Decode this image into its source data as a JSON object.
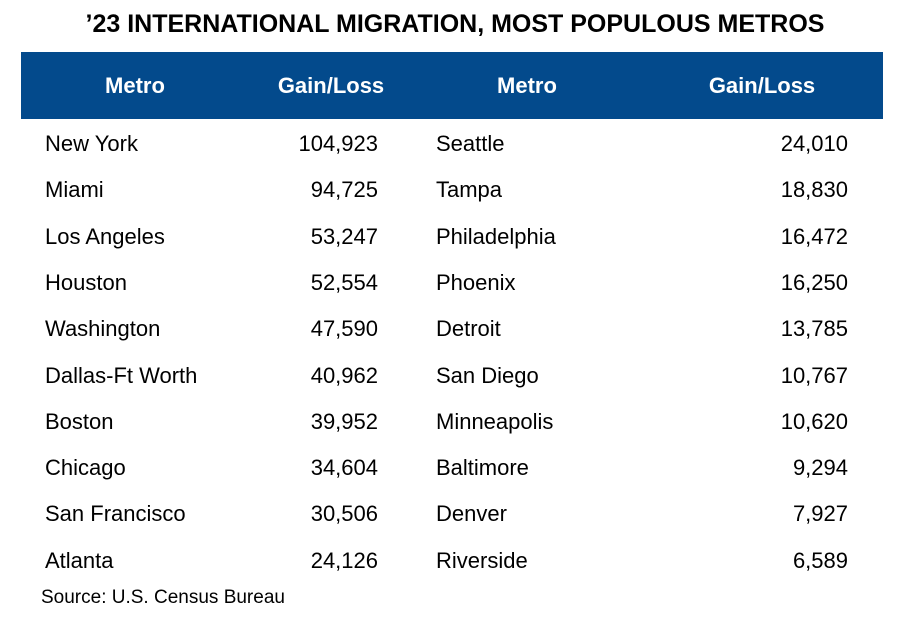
{
  "title": "’23 INTERNATIONAL MIGRATION, MOST POPULOUS METROS",
  "table": {
    "header": [
      "Metro",
      "Gain/Loss",
      "Metro",
      "Gain/Loss"
    ],
    "rows": [
      [
        "New York",
        "104,923",
        "Seattle",
        "24,010"
      ],
      [
        "Miami",
        "94,725",
        "Tampa",
        "18,830"
      ],
      [
        "Los Angeles",
        "53,247",
        "Philadelphia",
        "16,472"
      ],
      [
        "Houston",
        "52,554",
        "Phoenix",
        "16,250"
      ],
      [
        "Washington",
        "47,590",
        "Detroit",
        "13,785"
      ],
      [
        "Dallas-Ft Worth",
        "40,962",
        "San Diego",
        "10,767"
      ],
      [
        "Boston",
        "39,952",
        "Minneapolis",
        "10,620"
      ],
      [
        "Chicago",
        "34,604",
        "Baltimore",
        "9,294"
      ],
      [
        "San Francisco",
        "30,506",
        "Denver",
        "7,927"
      ],
      [
        "Atlanta",
        "24,126",
        "Riverside",
        "6,589"
      ]
    ]
  },
  "source": "Source: U.S. Census Bureau"
}
